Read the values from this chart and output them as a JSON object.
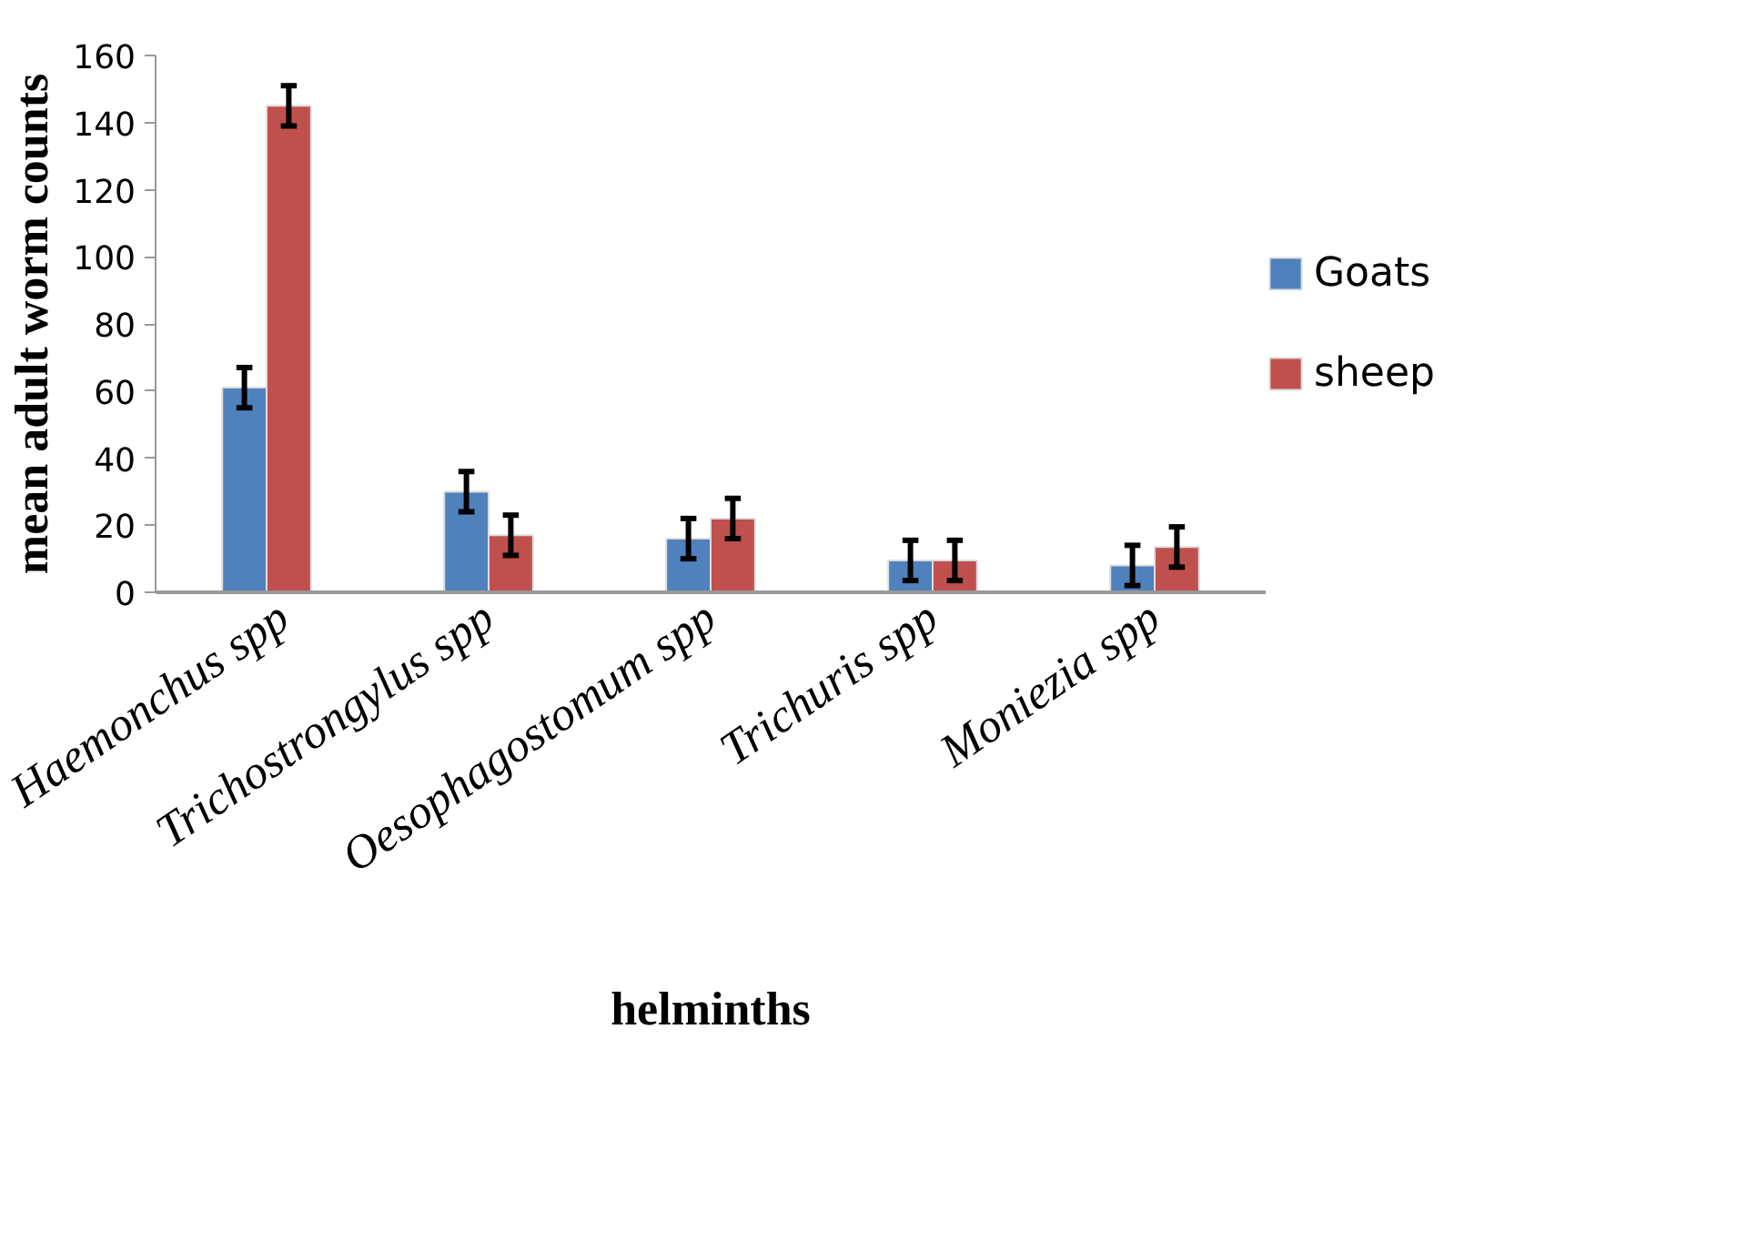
{
  "chart_data": {
    "type": "bar",
    "xlabel": "helminths",
    "ylabel": "mean adult worm counts",
    "categories": [
      "Haemonchus spp",
      "Trichostrongylus spp",
      "Oesophagostomum spp",
      "Trichuris spp",
      "Moniezia spp"
    ],
    "series": [
      {
        "name": "Goats",
        "color": "#4f81bd",
        "values": [
          61,
          30,
          16,
          9.5,
          8
        ],
        "errors": [
          6,
          6,
          6,
          6,
          6
        ]
      },
      {
        "name": "sheep",
        "color": "#c0504d",
        "values": [
          145,
          17,
          22,
          9.5,
          13.5
        ],
        "errors": [
          6,
          6,
          6,
          6,
          6
        ]
      }
    ],
    "ylim": [
      0,
      160
    ],
    "yticks": [
      0,
      20,
      40,
      60,
      80,
      100,
      120,
      140,
      160
    ],
    "grid": false,
    "legend": "right"
  }
}
